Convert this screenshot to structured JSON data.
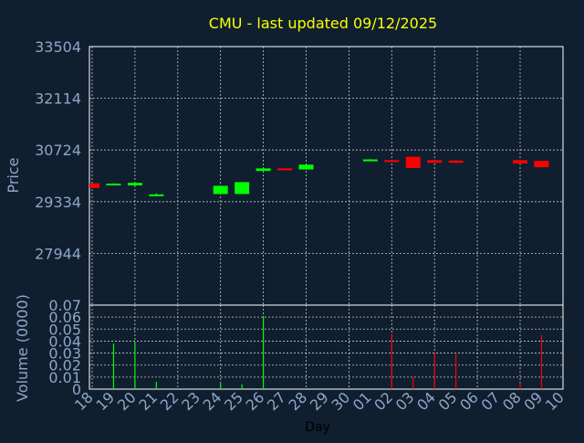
{
  "title": "CMU - last updated 09/12/2025",
  "colors": {
    "background": "#0f1f30",
    "title": "#ffff00",
    "axis_text": "#8fa6c6",
    "xlabel": "#000000",
    "frame": "#ffffff",
    "grid": "#c8c8c8",
    "up": "#00ff00",
    "down": "#ff0000"
  },
  "chart_data": [
    {
      "type": "candlestick",
      "ylabel": "Price",
      "ylim": [
        26554,
        33504
      ],
      "yticks": [
        "33504",
        "32114",
        "30724",
        "29334",
        "27944"
      ],
      "grid": true,
      "candles": [
        {
          "day": "18",
          "open": 29830,
          "close": 29700,
          "high": 29830,
          "low": 29700
        },
        {
          "day": "19",
          "open": 29790,
          "close": 29820,
          "high": 29830,
          "low": 29780
        },
        {
          "day": "20",
          "open": 29770,
          "close": 29840,
          "high": 29850,
          "low": 29760
        },
        {
          "day": "21",
          "open": 29490,
          "close": 29530,
          "high": 29560,
          "low": 29480
        },
        {
          "day": "24",
          "open": 29540,
          "close": 29760,
          "high": 29760,
          "low": 29540
        },
        {
          "day": "25",
          "open": 29540,
          "close": 29860,
          "high": 29860,
          "low": 29540
        },
        {
          "day": "26",
          "open": 30160,
          "close": 30230,
          "high": 30240,
          "low": 30150
        },
        {
          "day": "27",
          "open": 30230,
          "close": 30180,
          "high": 30230,
          "low": 30170
        },
        {
          "day": "28",
          "open": 30200,
          "close": 30330,
          "high": 30340,
          "low": 30190
        },
        {
          "day": "01",
          "open": 30440,
          "close": 30470,
          "high": 30480,
          "low": 30430
        },
        {
          "day": "02",
          "open": 30450,
          "close": 30420,
          "high": 30460,
          "low": 30410
        },
        {
          "day": "03",
          "open": 30540,
          "close": 30240,
          "high": 30540,
          "low": 30240
        },
        {
          "day": "04",
          "open": 30450,
          "close": 30380,
          "high": 30460,
          "low": 30370
        },
        {
          "day": "05",
          "open": 30440,
          "close": 30380,
          "high": 30450,
          "low": 30370
        },
        {
          "day": "08",
          "open": 30450,
          "close": 30360,
          "high": 30460,
          "low": 30350
        },
        {
          "day": "09",
          "open": 30430,
          "close": 30260,
          "high": 30430,
          "low": 30250
        }
      ]
    },
    {
      "type": "bar",
      "ylabel": "Volume (0000)",
      "ylim": [
        0,
        0.07
      ],
      "yticks": [
        "0.07",
        "0.06",
        "0.05",
        "0.04",
        "0.03",
        "0.02",
        "0.01",
        "0"
      ],
      "xlabel": "Day",
      "x_tick_labels": [
        "18",
        "19",
        "20",
        "21",
        "22",
        "23",
        "24",
        "25",
        "26",
        "27",
        "28",
        "29",
        "30",
        "01",
        "02",
        "03",
        "04",
        "05",
        "06",
        "07",
        "08",
        "09",
        "10"
      ],
      "bars": [
        {
          "day": "19",
          "value": 0.038,
          "direction": "up"
        },
        {
          "day": "20",
          "value": 0.039,
          "direction": "up"
        },
        {
          "day": "21",
          "value": 0.006,
          "direction": "up"
        },
        {
          "day": "24",
          "value": 0.005,
          "direction": "up"
        },
        {
          "day": "25",
          "value": 0.004,
          "direction": "up"
        },
        {
          "day": "26",
          "value": 0.061,
          "direction": "up"
        },
        {
          "day": "02",
          "value": 0.046,
          "direction": "down"
        },
        {
          "day": "03",
          "value": 0.01,
          "direction": "down"
        },
        {
          "day": "04",
          "value": 0.03,
          "direction": "down"
        },
        {
          "day": "05",
          "value": 0.029,
          "direction": "down"
        },
        {
          "day": "08",
          "value": 0.005,
          "direction": "down"
        },
        {
          "day": "09",
          "value": 0.045,
          "direction": "down"
        }
      ]
    }
  ]
}
